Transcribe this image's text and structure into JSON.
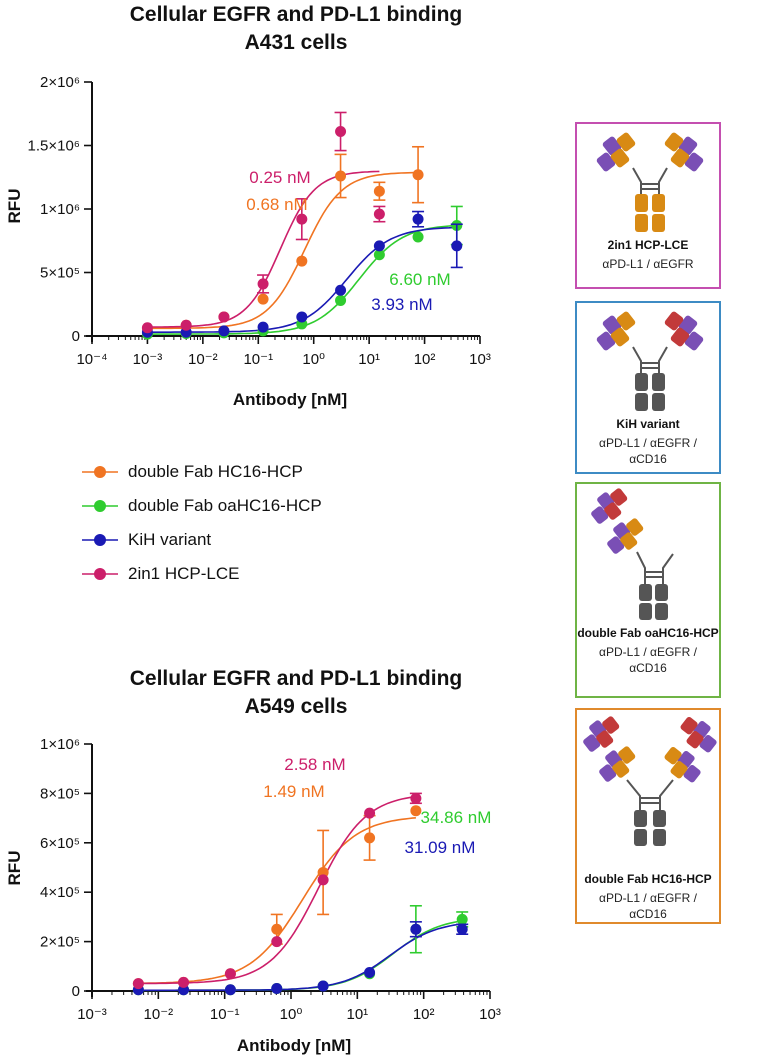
{
  "legend": [
    {
      "label": "double Fab HC16-HCP",
      "color": "#f07422"
    },
    {
      "label": "double Fab oaHC16-HCP",
      "color": "#2fcc2f"
    },
    {
      "label": "KiH variant",
      "color": "#1a1ab4"
    },
    {
      "label": "2in1 HCP-LCE",
      "color": "#cc1f6a"
    }
  ],
  "panels": [
    {
      "name": "2in1 HCP-LCE",
      "targets": [
        "αPD-L1 / αEGFR"
      ],
      "border": "#c44fb0"
    },
    {
      "name": "KiH variant",
      "targets": [
        "αPD-L1 / αEGFR /",
        "αCD16"
      ],
      "border": "#3d8bc4"
    },
    {
      "name": "double Fab oaHC16-HCP",
      "targets": [
        "αPD-L1 / αEGFR /",
        "αCD16"
      ],
      "border": "#6fb445"
    },
    {
      "name": "double Fab HC16-HCP",
      "targets": [
        "αPD-L1 / αEGFR /",
        "αCD16"
      ],
      "border": "#e08a2c"
    }
  ],
  "chart_data": [
    {
      "type": "scatter",
      "title": "Cellular EGFR and PD-L1 binding",
      "subtitle": "A431 cells",
      "xlabel": "Antibody [nM]",
      "ylabel": "RFU",
      "x_scale": "log",
      "xlim": [
        0.0001,
        1000
      ],
      "ylim": [
        0,
        2000000
      ],
      "x_ticks": [
        "10⁻⁴",
        "10⁻³",
        "10⁻²",
        "10⁻¹",
        "10⁰",
        "10¹",
        "10²",
        "10³"
      ],
      "y_ticks": [
        "0",
        "5×10⁵",
        "1×10⁶",
        "1.5×10⁶",
        "2×10⁶"
      ],
      "series": [
        {
          "name": "double Fab HC16-HCP",
          "color": "#f07422",
          "x": [
            0.001,
            0.005,
            0.024,
            0.122,
            0.61,
            3.05,
            15.3,
            76.3
          ],
          "y": [
            60000,
            85000,
            150000,
            290000,
            590000,
            1260000,
            1140000,
            1270000
          ],
          "err": [
            0,
            0,
            0,
            0,
            0,
            170000,
            70000,
            220000
          ],
          "fit": {
            "bottom": 60000,
            "top": 1290000,
            "ec50": 0.68,
            "hill": 1.3,
            "xmin": 0.001,
            "xmax": 76.3
          },
          "ec50_label": "0.68 nM"
        },
        {
          "name": "double Fab oaHC16-HCP",
          "color": "#2fcc2f",
          "x": [
            0.001,
            0.005,
            0.024,
            0.122,
            0.61,
            3.05,
            15.3,
            76.3,
            381
          ],
          "y": [
            15000,
            20000,
            25000,
            40000,
            95000,
            280000,
            640000,
            780000,
            870000
          ],
          "err": [
            0,
            0,
            0,
            0,
            0,
            0,
            0,
            0,
            150000
          ],
          "fit": {
            "bottom": 15000,
            "top": 880000,
            "ec50": 6.6,
            "hill": 1.1,
            "xmin": 0.001,
            "xmax": 381
          },
          "ec50_label": "6.60 nM"
        },
        {
          "name": "KiH variant",
          "color": "#1a1ab4",
          "x": [
            0.001,
            0.005,
            0.024,
            0.122,
            0.61,
            3.05,
            15.3,
            76.3,
            381
          ],
          "y": [
            30000,
            30000,
            40000,
            70000,
            150000,
            360000,
            710000,
            920000,
            710000
          ],
          "err": [
            0,
            0,
            0,
            0,
            0,
            0,
            0,
            60000,
            170000
          ],
          "fit": {
            "bottom": 30000,
            "top": 860000,
            "ec50": 3.93,
            "hill": 1.1,
            "xmin": 0.001,
            "xmax": 381
          },
          "ec50_label": "3.93 nM"
        },
        {
          "name": "2in1 HCP-LCE",
          "color": "#cc1f6a",
          "x": [
            0.001,
            0.005,
            0.024,
            0.122,
            0.61,
            3.05,
            15.3
          ],
          "y": [
            65000,
            85000,
            150000,
            410000,
            920000,
            1610000,
            960000
          ],
          "err": [
            0,
            0,
            0,
            70000,
            160000,
            150000,
            60000
          ],
          "fit": {
            "bottom": 70000,
            "top": 1300000,
            "ec50": 0.25,
            "hill": 1.4,
            "xmin": 0.001,
            "xmax": 15.3
          },
          "ec50_label": "0.25 nM"
        }
      ]
    },
    {
      "type": "scatter",
      "title": "Cellular EGFR and PD-L1 binding",
      "subtitle": "A549 cells",
      "xlabel": "Antibody [nM]",
      "ylabel": "RFU",
      "x_scale": "log",
      "xlim": [
        0.001,
        1000
      ],
      "ylim": [
        0,
        1000000
      ],
      "x_ticks": [
        "10⁻³",
        "10⁻²",
        "10⁻¹",
        "10⁰",
        "10¹",
        "10²",
        "10³"
      ],
      "y_ticks": [
        "0",
        "2×10⁵",
        "4×10⁵",
        "6×10⁵",
        "8×10⁵",
        "1×10⁶"
      ],
      "series": [
        {
          "name": "double Fab HC16-HCP",
          "color": "#f07422",
          "x": [
            0.005,
            0.024,
            0.122,
            0.61,
            3.05,
            15.3,
            76.3
          ],
          "y": [
            30000,
            35000,
            70000,
            250000,
            480000,
            620000,
            730000
          ],
          "err": [
            0,
            0,
            0,
            60000,
            170000,
            90000,
            0
          ],
          "fit": {
            "bottom": 30000,
            "top": 710000,
            "ec50": 1.49,
            "hill": 1.1,
            "xmin": 0.005,
            "xmax": 76.3
          },
          "ec50_label": "1.49 nM"
        },
        {
          "name": "double Fab oaHC16-HCP",
          "color": "#2fcc2f",
          "x": [
            0.005,
            0.024,
            0.122,
            0.61,
            3.05,
            15.3,
            76.3,
            381
          ],
          "y": [
            5000,
            5000,
            5000,
            10000,
            20000,
            70000,
            250000,
            290000
          ],
          "err": [
            0,
            0,
            0,
            0,
            0,
            0,
            95000,
            30000
          ],
          "fit": {
            "bottom": 3000,
            "top": 300000,
            "ec50": 34.86,
            "hill": 1.2,
            "xmin": 0.005,
            "xmax": 381
          },
          "ec50_label": "34.86 nM"
        },
        {
          "name": "KiH variant",
          "color": "#1a1ab4",
          "x": [
            0.005,
            0.024,
            0.122,
            0.61,
            3.05,
            15.3,
            76.3,
            381
          ],
          "y": [
            5000,
            5000,
            5000,
            10000,
            20000,
            75000,
            250000,
            250000
          ],
          "err": [
            0,
            0,
            0,
            0,
            0,
            0,
            30000,
            20000
          ],
          "fit": {
            "bottom": 3000,
            "top": 285000,
            "ec50": 31.09,
            "hill": 1.2,
            "xmin": 0.005,
            "xmax": 381
          },
          "ec50_label": "31.09 nM"
        },
        {
          "name": "2in1 HCP-LCE",
          "color": "#cc1f6a",
          "x": [
            0.005,
            0.024,
            0.122,
            0.61,
            3.05,
            15.3,
            76.3
          ],
          "y": [
            30000,
            35000,
            70000,
            200000,
            450000,
            720000,
            780000
          ],
          "err": [
            0,
            0,
            0,
            0,
            0,
            0,
            20000
          ],
          "fit": {
            "bottom": 30000,
            "top": 800000,
            "ec50": 2.58,
            "hill": 1.2,
            "xmin": 0.005,
            "xmax": 76.3
          },
          "ec50_label": "2.58 nM"
        }
      ]
    }
  ]
}
